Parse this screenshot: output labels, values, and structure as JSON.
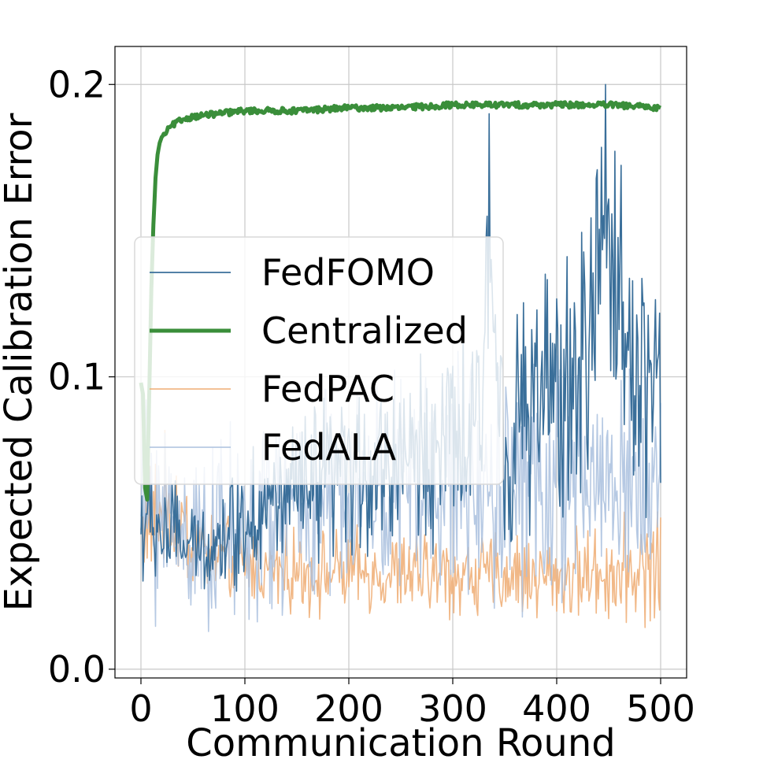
{
  "chart_data": {
    "type": "line",
    "title": "",
    "xlabel": "Communication Round",
    "ylabel": "Expected Calibration Error",
    "xlim": [
      -25,
      525
    ],
    "ylim": [
      -0.003,
      0.213
    ],
    "xticks": [
      0,
      100,
      200,
      300,
      400,
      500
    ],
    "yticks": [
      0.0,
      0.1,
      0.2
    ],
    "xtick_labels": [
      "0",
      "100",
      "200",
      "300",
      "400",
      "500"
    ],
    "ytick_labels": [
      "0.0",
      "0.1",
      "0.2"
    ],
    "grid": true,
    "legend_position": "center-left",
    "series": [
      {
        "name": "FedFOMO",
        "color": "#3a6f9a",
        "stroke_width": 1.6,
        "opacity": 1.0,
        "x": [
          0,
          25,
          50,
          75,
          100,
          125,
          150,
          175,
          200,
          225,
          250,
          275,
          300,
          325,
          335,
          350,
          375,
          400,
          425,
          447,
          475,
          500
        ],
        "values": [
          0.045,
          0.05,
          0.04,
          0.043,
          0.048,
          0.052,
          0.055,
          0.06,
          0.062,
          0.065,
          0.068,
          0.07,
          0.072,
          0.075,
          0.19,
          0.078,
          0.085,
          0.09,
          0.095,
          0.2,
          0.1,
          0.095
        ],
        "noise_low": [
          0.02,
          0.02,
          0.025,
          0.025,
          0.025,
          0.03,
          0.03,
          0.03,
          0.035,
          0.035,
          0.035,
          0.04,
          0.04,
          0.04,
          0.04,
          0.035,
          0.04,
          0.045,
          0.045,
          0.045,
          0.045,
          0.045
        ],
        "noise_high": [
          0.085,
          0.07,
          0.06,
          0.065,
          0.085,
          0.09,
          0.095,
          0.1,
          0.105,
          0.11,
          0.12,
          0.12,
          0.125,
          0.13,
          0.13,
          0.13,
          0.145,
          0.155,
          0.165,
          0.17,
          0.17,
          0.16
        ]
      },
      {
        "name": "Centralized",
        "color": "#3a8e3a",
        "stroke_width": 5,
        "opacity": 1.0,
        "x": [
          0,
          2,
          4,
          6,
          8,
          10,
          12,
          14,
          16,
          18,
          20,
          25,
          30,
          40,
          50,
          75,
          100,
          150,
          200,
          250,
          300,
          350,
          400,
          450,
          500
        ],
        "values": [
          0.098,
          0.094,
          0.062,
          0.058,
          0.095,
          0.13,
          0.152,
          0.168,
          0.176,
          0.18,
          0.182,
          0.184,
          0.186,
          0.188,
          0.189,
          0.19,
          0.191,
          0.191,
          0.192,
          0.192,
          0.193,
          0.193,
          0.193,
          0.193,
          0.192
        ],
        "noise_low": [
          0.0,
          0.0,
          0.0,
          0.0,
          0.0,
          0.0,
          0.0,
          0.0,
          0.0,
          0.0,
          0.0,
          -0.001,
          -0.001,
          -0.001,
          -0.001,
          -0.001,
          -0.001,
          -0.001,
          -0.001,
          -0.001,
          -0.001,
          -0.001,
          -0.001,
          -0.001,
          -0.001
        ],
        "noise_high": [
          0.0,
          0.0,
          0.0,
          0.0,
          0.0,
          0.0,
          0.0,
          0.0,
          0.0,
          0.0,
          0.0,
          0.001,
          0.001,
          0.001,
          0.001,
          0.001,
          0.001,
          0.001,
          0.001,
          0.001,
          0.001,
          0.001,
          0.001,
          0.001,
          0.001
        ]
      },
      {
        "name": "FedPAC",
        "color": "#f0b07a",
        "stroke_width": 1.6,
        "opacity": 0.9,
        "x": [
          0,
          25,
          50,
          75,
          100,
          150,
          200,
          250,
          300,
          350,
          400,
          450,
          500
        ],
        "values": [
          0.045,
          0.05,
          0.045,
          0.038,
          0.036,
          0.034,
          0.033,
          0.033,
          0.032,
          0.032,
          0.032,
          0.032,
          0.035
        ],
        "noise_low": [
          0.03,
          0.03,
          0.022,
          0.02,
          0.018,
          0.015,
          0.015,
          0.014,
          0.014,
          0.014,
          0.013,
          0.013,
          0.013
        ],
        "noise_high": [
          0.075,
          0.09,
          0.065,
          0.055,
          0.052,
          0.05,
          0.05,
          0.05,
          0.05,
          0.05,
          0.05,
          0.055,
          0.06
        ]
      },
      {
        "name": "FedALA",
        "color": "#a9c0de",
        "stroke_width": 1.6,
        "opacity": 0.85,
        "x": [
          0,
          25,
          50,
          75,
          100,
          150,
          200,
          250,
          300,
          350,
          400,
          450,
          500
        ],
        "values": [
          0.05,
          0.045,
          0.038,
          0.038,
          0.04,
          0.045,
          0.048,
          0.052,
          0.055,
          0.055,
          0.056,
          0.058,
          0.06
        ],
        "noise_low": [
          0.02,
          0.015,
          0.013,
          0.015,
          0.015,
          0.018,
          0.02,
          0.02,
          0.022,
          0.022,
          0.022,
          0.023,
          0.025
        ],
        "noise_high": [
          0.11,
          0.1,
          0.095,
          0.095,
          0.1,
          0.11,
          0.115,
          0.12,
          0.125,
          0.125,
          0.125,
          0.12,
          0.115
        ]
      }
    ]
  }
}
